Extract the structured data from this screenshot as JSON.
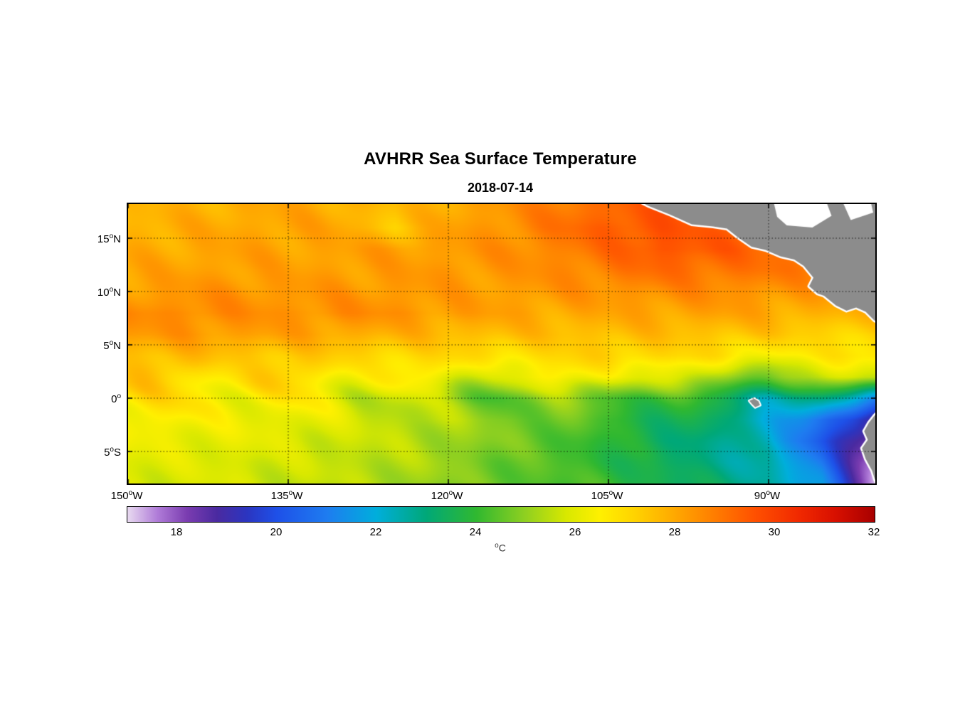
{
  "chart_data": {
    "type": "heatmap",
    "title": "AVHRR Sea Surface Temperature",
    "subtitle": "2018-07-14",
    "colorbar_label": "°C",
    "legend_position": "bottom-colorbar",
    "grid_on": true,
    "lon_range": [
      -150,
      -80
    ],
    "lat_range": [
      -8.0,
      18.2
    ],
    "temp_range": [
      17,
      32
    ],
    "x_ticks": [
      {
        "value": -150,
        "label": "150°W"
      },
      {
        "value": -135,
        "label": "135°W"
      },
      {
        "value": -120,
        "label": "120°W"
      },
      {
        "value": -105,
        "label": "105°W"
      },
      {
        "value": -90,
        "label": "90°W"
      }
    ],
    "y_ticks": [
      {
        "value": 15,
        "label": "15°N"
      },
      {
        "value": 10,
        "label": "10°N"
      },
      {
        "value": 5,
        "label": "5°N"
      },
      {
        "value": 0,
        "label": "0°"
      },
      {
        "value": -5,
        "label": "5°S"
      }
    ],
    "colorbar_ticks": [
      18,
      20,
      22,
      24,
      26,
      28,
      30,
      32
    ],
    "colormap": [
      [
        17.0,
        "#E8DAF0"
      ],
      [
        17.6,
        "#B07CD8"
      ],
      [
        18.2,
        "#7A3CB0"
      ],
      [
        18.8,
        "#4A2AA0"
      ],
      [
        19.4,
        "#2B35C0"
      ],
      [
        20.0,
        "#1E50E8"
      ],
      [
        21.0,
        "#1E7CF0"
      ],
      [
        22.0,
        "#00AEDC"
      ],
      [
        23.0,
        "#00A878"
      ],
      [
        24.0,
        "#30B830"
      ],
      [
        25.0,
        "#90D020"
      ],
      [
        25.8,
        "#D8E800"
      ],
      [
        26.5,
        "#FFF000"
      ],
      [
        27.2,
        "#FFD200"
      ],
      [
        28.0,
        "#FFA800"
      ],
      [
        28.8,
        "#FF7C00"
      ],
      [
        29.6,
        "#FF5000"
      ],
      [
        30.5,
        "#F02800"
      ],
      [
        31.2,
        "#D81000"
      ],
      [
        32.0,
        "#A80000"
      ]
    ],
    "land_color": "#8C8C8C",
    "coast_fringe_color": "#FFFFFF",
    "grid": {
      "lons": [
        -150,
        -145,
        -140,
        -135,
        -130,
        -125,
        -120,
        -115,
        -110,
        -105,
        -100,
        -95,
        -90,
        -85,
        -80
      ],
      "lats": [
        18,
        16,
        14,
        12,
        10,
        8,
        6,
        4,
        2,
        0,
        -2,
        -4,
        -6,
        -8
      ],
      "sst": [
        [
          27.6,
          27.8,
          27.9,
          28.0,
          27.9,
          27.5,
          28.0,
          28.3,
          28.8,
          29.2,
          29.4,
          29.2,
          29.0,
          28.8,
          28.6
        ],
        [
          27.8,
          27.9,
          28.0,
          28.1,
          28.0,
          27.4,
          28.1,
          28.4,
          28.9,
          29.4,
          29.6,
          29.3,
          29.0,
          28.8,
          28.6
        ],
        [
          27.9,
          28.0,
          28.1,
          28.1,
          28.1,
          28.2,
          28.2,
          28.4,
          28.7,
          29.1,
          29.6,
          29.4,
          29.1,
          28.9,
          28.7
        ],
        [
          28.0,
          28.1,
          28.2,
          28.1,
          28.2,
          28.2,
          28.3,
          28.3,
          28.5,
          28.8,
          29.1,
          29.0,
          28.9,
          28.7,
          28.5
        ],
        [
          28.2,
          28.3,
          28.4,
          28.3,
          28.3,
          28.3,
          28.2,
          28.2,
          28.3,
          28.4,
          28.5,
          28.5,
          28.4,
          28.2,
          28.0
        ],
        [
          28.5,
          28.6,
          28.5,
          28.4,
          28.5,
          28.4,
          28.2,
          28.1,
          28.0,
          28.0,
          28.1,
          28.1,
          28.0,
          27.8,
          27.7
        ],
        [
          28.2,
          28.3,
          28.2,
          28.1,
          28.0,
          27.8,
          27.7,
          27.6,
          27.6,
          27.6,
          27.6,
          27.5,
          27.4,
          27.2,
          27.1
        ],
        [
          27.6,
          27.6,
          27.5,
          27.4,
          27.2,
          27.1,
          27.0,
          26.9,
          27.0,
          27.2,
          27.1,
          26.8,
          26.4,
          26.6,
          26.9
        ],
        [
          27.1,
          27.1,
          27.0,
          26.9,
          26.7,
          26.4,
          26.1,
          25.9,
          26.2,
          26.6,
          25.8,
          25.2,
          24.8,
          25.4,
          25.9
        ],
        [
          26.8,
          26.7,
          26.6,
          26.4,
          26.1,
          25.6,
          25.0,
          24.6,
          24.8,
          24.6,
          24.1,
          23.6,
          22.6,
          22.8,
          21.4
        ],
        [
          26.5,
          26.4,
          26.3,
          26.1,
          25.9,
          25.6,
          25.3,
          24.9,
          24.6,
          24.1,
          23.6,
          23.1,
          22.2,
          20.6,
          18.8
        ],
        [
          26.2,
          26.1,
          26.1,
          25.9,
          25.7,
          25.5,
          25.2,
          24.8,
          24.4,
          23.9,
          23.3,
          22.9,
          22.2,
          20.2,
          17.8
        ],
        [
          26.0,
          25.9,
          25.9,
          25.7,
          25.6,
          25.4,
          25.1,
          24.6,
          24.3,
          23.9,
          23.3,
          22.9,
          22.4,
          20.8,
          17.4
        ],
        [
          25.9,
          25.8,
          25.8,
          25.6,
          25.5,
          25.3,
          24.9,
          24.6,
          24.3,
          24.1,
          23.6,
          23.1,
          22.7,
          21.4,
          17.2
        ]
      ]
    },
    "land": {
      "central_america": [
        [
          -102.4,
          18.6
        ],
        [
          -101.2,
          18.0
        ],
        [
          -99.2,
          17.2
        ],
        [
          -97.2,
          16.3
        ],
        [
          -95.2,
          16.1
        ],
        [
          -93.9,
          15.9
        ],
        [
          -92.9,
          15.1
        ],
        [
          -91.6,
          14.2
        ],
        [
          -90.3,
          13.9
        ],
        [
          -88.9,
          13.3
        ],
        [
          -87.6,
          13.0
        ],
        [
          -86.7,
          12.4
        ],
        [
          -85.8,
          11.3
        ],
        [
          -86.2,
          10.5
        ],
        [
          -85.4,
          9.8
        ],
        [
          -84.8,
          9.6
        ],
        [
          -83.7,
          8.7
        ],
        [
          -82.7,
          8.2
        ],
        [
          -81.8,
          8.5
        ],
        [
          -80.9,
          8.1
        ],
        [
          -80.1,
          7.3
        ],
        [
          -79.5,
          7.0
        ],
        [
          -79.5,
          18.6
        ]
      ],
      "no_data": [
        [
          [
            -89.6,
            18.7
          ],
          [
            -84.7,
            18.7
          ],
          [
            -84.1,
            17.1
          ],
          [
            -85.9,
            16.0
          ],
          [
            -88.3,
            16.2
          ],
          [
            -89.2,
            17.0
          ]
        ],
        [
          [
            -83.2,
            18.7
          ],
          [
            -80.5,
            18.7
          ],
          [
            -80.2,
            17.4
          ],
          [
            -82.3,
            16.7
          ]
        ]
      ],
      "south_america": [
        [
          -79.6,
          -1.2
        ],
        [
          -80.05,
          -1.6
        ],
        [
          -80.6,
          -2.3
        ],
        [
          -81.05,
          -3.1
        ],
        [
          -80.7,
          -3.9
        ],
        [
          -81.25,
          -4.7
        ],
        [
          -80.9,
          -5.7
        ],
        [
          -80.3,
          -6.8
        ],
        [
          -80.05,
          -7.6
        ],
        [
          -79.6,
          -8.4
        ]
      ],
      "galapagos": [
        [
          -91.8,
          -0.25
        ],
        [
          -91.35,
          -0.05
        ],
        [
          -90.95,
          -0.3
        ],
        [
          -90.8,
          -0.65
        ],
        [
          -91.25,
          -0.85
        ],
        [
          -91.55,
          -0.55
        ]
      ]
    }
  }
}
